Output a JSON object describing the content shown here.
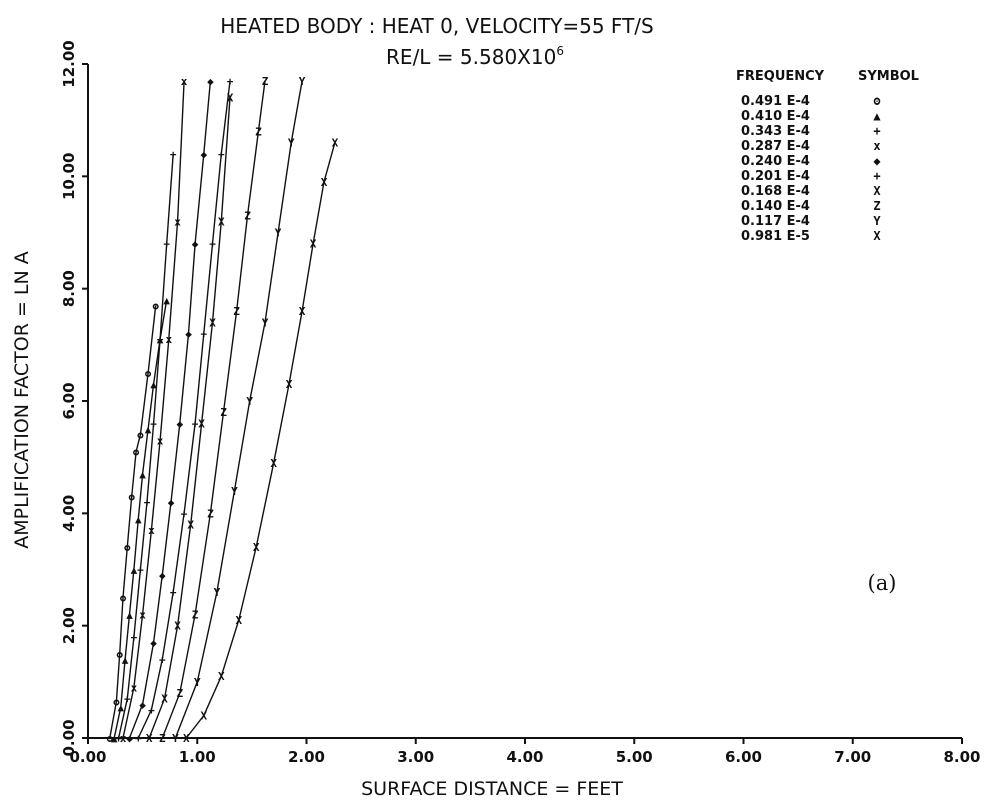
{
  "chart_data": {
    "type": "line",
    "title": "HEATED BODY : HEAT 0, VELOCITY=55 FT/S",
    "subtitle": "RE/L = 5.580X10",
    "subtitle_sup": "6",
    "xlabel": "SURFACE DISTANCE = FEET",
    "ylabel": "AMPLIFICATION FACTOR = LN A",
    "xlim": [
      0,
      8
    ],
    "ylim": [
      0,
      12
    ],
    "x_ticks": [
      "0.00",
      "1.00",
      "2.00",
      "3.00",
      "4.00",
      "5.00",
      "6.00",
      "7.00",
      "8.00"
    ],
    "y_ticks": [
      "0.00",
      "2.00",
      "4.00",
      "6.00",
      "8.00",
      "10.00",
      "12.00"
    ],
    "grid": false,
    "legend": {
      "position": "top-right",
      "header_frequency": "FREQUENCY",
      "header_symbol": "SYMBOL",
      "entries": [
        {
          "frequency": "0.491 E-4",
          "symbol": "ʘ"
        },
        {
          "frequency": "0.410 E-4",
          "symbol": "▲"
        },
        {
          "frequency": "0.343 E-4",
          "symbol": "+"
        },
        {
          "frequency": "0.287 E-4",
          "symbol": "x"
        },
        {
          "frequency": "0.240 E-4",
          "symbol": "◆"
        },
        {
          "frequency": "0.201 E-4",
          "symbol": "+"
        },
        {
          "frequency": "0.168 E-4",
          "symbol": "X"
        },
        {
          "frequency": "0.140 E-4",
          "symbol": "Z"
        },
        {
          "frequency": "0.117 E-4",
          "symbol": "Y"
        },
        {
          "frequency": "0.981 E-5",
          "symbol": "X"
        }
      ]
    },
    "annotation": "(a)",
    "series": [
      {
        "name": "0.491 E-4",
        "symbol": "ʘ",
        "x": [
          0.2,
          0.26,
          0.29,
          0.32,
          0.36,
          0.4,
          0.44,
          0.48,
          0.55,
          0.62
        ],
        "y": [
          0.0,
          0.65,
          1.5,
          2.5,
          3.4,
          4.3,
          5.1,
          5.4,
          6.5,
          7.7
        ]
      },
      {
        "name": "0.410 E-4",
        "symbol": "▲",
        "x": [
          0.24,
          0.3,
          0.34,
          0.38,
          0.42,
          0.46,
          0.5,
          0.55,
          0.6,
          0.66,
          0.72
        ],
        "y": [
          0.0,
          0.55,
          1.4,
          2.2,
          3.0,
          3.9,
          4.7,
          5.5,
          6.3,
          7.1,
          7.8
        ]
      },
      {
        "name": "0.343 E-4",
        "symbol": "+",
        "x": [
          0.28,
          0.36,
          0.42,
          0.48,
          0.54,
          0.6,
          0.66,
          0.72,
          0.78
        ],
        "y": [
          0.0,
          0.7,
          1.8,
          3.0,
          4.2,
          5.6,
          7.1,
          8.8,
          10.4
        ]
      },
      {
        "name": "0.287 E-4",
        "symbol": "x",
        "x": [
          0.32,
          0.42,
          0.5,
          0.58,
          0.66,
          0.74,
          0.82,
          0.88
        ],
        "y": [
          0.0,
          0.9,
          2.2,
          3.7,
          5.3,
          7.1,
          9.2,
          11.7
        ]
      },
      {
        "name": "0.240 E-4",
        "symbol": "◆",
        "x": [
          0.38,
          0.5,
          0.6,
          0.68,
          0.76,
          0.84,
          0.92,
          0.98,
          1.06,
          1.12
        ],
        "y": [
          0.0,
          0.6,
          1.7,
          2.9,
          4.2,
          5.6,
          7.2,
          8.8,
          10.4,
          11.7
        ]
      },
      {
        "name": "0.201 E-4",
        "symbol": "+",
        "x": [
          0.46,
          0.58,
          0.68,
          0.78,
          0.88,
          0.98,
          1.06,
          1.14,
          1.22,
          1.3
        ],
        "y": [
          0.0,
          0.5,
          1.4,
          2.6,
          4.0,
          5.6,
          7.2,
          8.8,
          10.4,
          11.7
        ]
      },
      {
        "name": "0.168 E-4",
        "symbol": "X",
        "x": [
          0.56,
          0.7,
          0.82,
          0.94,
          1.04,
          1.14,
          1.22,
          1.3
        ],
        "y": [
          0.0,
          0.7,
          2.0,
          3.8,
          5.6,
          7.4,
          9.2,
          11.4
        ]
      },
      {
        "name": "0.140 E-4",
        "symbol": "Z",
        "x": [
          0.68,
          0.84,
          0.98,
          1.12,
          1.24,
          1.36,
          1.46,
          1.56,
          1.62
        ],
        "y": [
          0.0,
          0.8,
          2.2,
          4.0,
          5.8,
          7.6,
          9.3,
          10.8,
          11.7
        ]
      },
      {
        "name": "0.117 E-4",
        "symbol": "Y",
        "x": [
          0.8,
          1.0,
          1.18,
          1.34,
          1.48,
          1.62,
          1.74,
          1.86,
          1.96
        ],
        "y": [
          0.0,
          1.0,
          2.6,
          4.4,
          6.0,
          7.4,
          9.0,
          10.6,
          11.7
        ]
      },
      {
        "name": "0.981 E-5",
        "symbol": "X",
        "x": [
          0.9,
          1.06,
          1.22,
          1.38,
          1.54,
          1.7,
          1.84,
          1.96,
          2.06,
          2.16,
          2.26
        ],
        "y": [
          0.0,
          0.4,
          1.1,
          2.1,
          3.4,
          4.9,
          6.3,
          7.6,
          8.8,
          9.9,
          10.6
        ]
      }
    ]
  }
}
